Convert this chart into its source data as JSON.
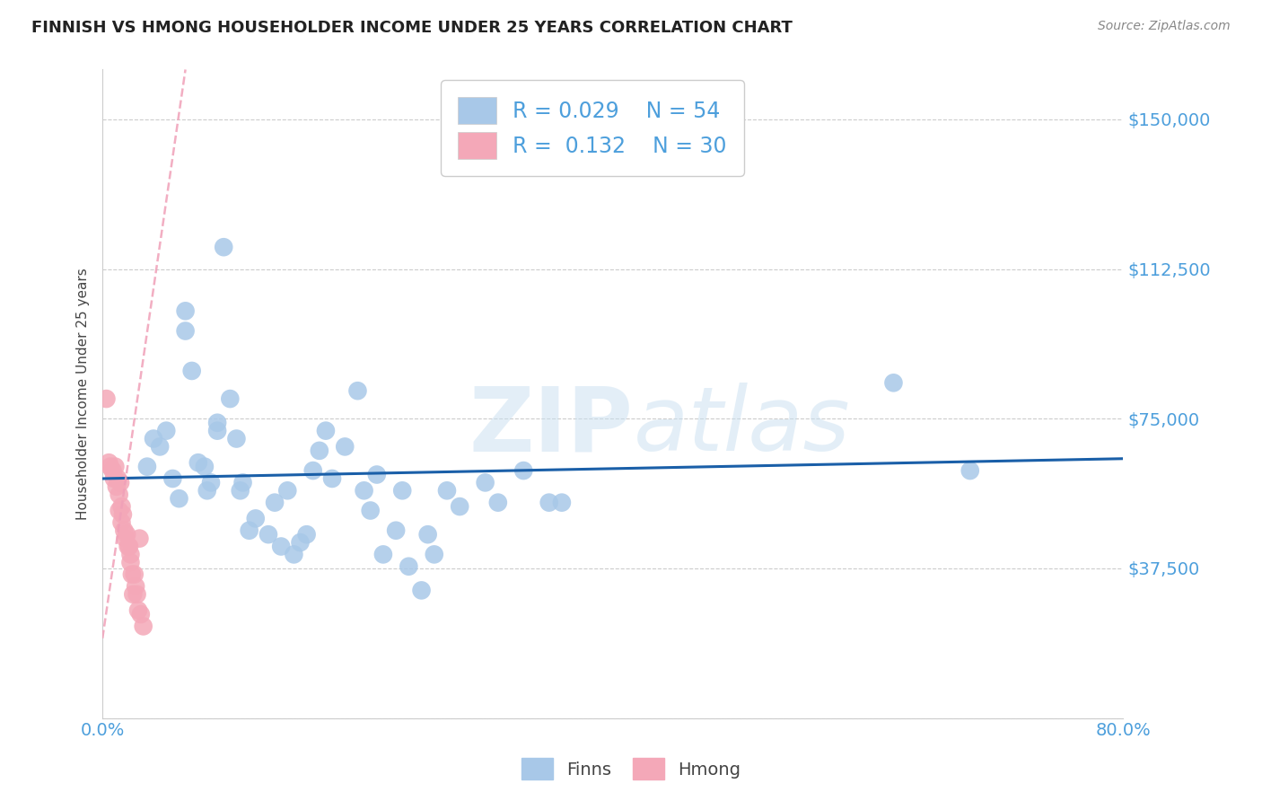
{
  "title": "FINNISH VS HMONG HOUSEHOLDER INCOME UNDER 25 YEARS CORRELATION CHART",
  "source": "Source: ZipAtlas.com",
  "ylabel": "Householder Income Under 25 years",
  "xlim_pct": [
    0.0,
    0.8
  ],
  "ylim": [
    0,
    162500
  ],
  "yticks": [
    0,
    37500,
    75000,
    112500,
    150000
  ],
  "ytick_labels": [
    "",
    "$37,500",
    "$75,000",
    "$112,500",
    "$150,000"
  ],
  "xtick_positions_pct": [
    0.0,
    0.1,
    0.2,
    0.3,
    0.4,
    0.5,
    0.6,
    0.7,
    0.8
  ],
  "xtick_labels": [
    "0.0%",
    "",
    "",
    "",
    "",
    "",
    "",
    "",
    "80.0%"
  ],
  "legend_finn_R": "0.029",
  "legend_finn_N": "54",
  "legend_hmong_R": "0.132",
  "legend_hmong_N": "30",
  "finn_color": "#a8c8e8",
  "hmong_color": "#f4a8b8",
  "trend_finn_color": "#1a5fa8",
  "trend_hmong_color": "#f0a0b8",
  "watermark_zip": "ZIP",
  "watermark_atlas": "atlas",
  "finn_x": [
    0.035,
    0.04,
    0.045,
    0.05,
    0.055,
    0.06,
    0.065,
    0.065,
    0.07,
    0.075,
    0.08,
    0.082,
    0.085,
    0.09,
    0.09,
    0.095,
    0.1,
    0.105,
    0.108,
    0.11,
    0.115,
    0.12,
    0.13,
    0.135,
    0.14,
    0.145,
    0.15,
    0.155,
    0.16,
    0.165,
    0.17,
    0.175,
    0.18,
    0.19,
    0.2,
    0.205,
    0.21,
    0.215,
    0.22,
    0.23,
    0.235,
    0.24,
    0.25,
    0.255,
    0.26,
    0.27,
    0.28,
    0.3,
    0.31,
    0.33,
    0.35,
    0.36,
    0.62,
    0.68
  ],
  "finn_y": [
    63000,
    70000,
    68000,
    72000,
    60000,
    55000,
    102000,
    97000,
    87000,
    64000,
    63000,
    57000,
    59000,
    72000,
    74000,
    118000,
    80000,
    70000,
    57000,
    59000,
    47000,
    50000,
    46000,
    54000,
    43000,
    57000,
    41000,
    44000,
    46000,
    62000,
    67000,
    72000,
    60000,
    68000,
    82000,
    57000,
    52000,
    61000,
    41000,
    47000,
    57000,
    38000,
    32000,
    46000,
    41000,
    57000,
    53000,
    59000,
    54000,
    62000,
    54000,
    54000,
    84000,
    62000
  ],
  "hmong_x": [
    0.003,
    0.005,
    0.006,
    0.008,
    0.009,
    0.01,
    0.011,
    0.012,
    0.013,
    0.013,
    0.014,
    0.015,
    0.015,
    0.016,
    0.017,
    0.018,
    0.019,
    0.02,
    0.021,
    0.022,
    0.022,
    0.023,
    0.024,
    0.025,
    0.026,
    0.027,
    0.028,
    0.029,
    0.03,
    0.032
  ],
  "hmong_y": [
    80000,
    64000,
    63000,
    62000,
    60000,
    63000,
    58000,
    60000,
    56000,
    52000,
    59000,
    53000,
    49000,
    51000,
    47000,
    45000,
    46000,
    43000,
    43000,
    41000,
    39000,
    36000,
    31000,
    36000,
    33000,
    31000,
    27000,
    45000,
    26000,
    23000
  ],
  "fig_width": 14.06,
  "fig_height": 8.92,
  "dpi": 100
}
